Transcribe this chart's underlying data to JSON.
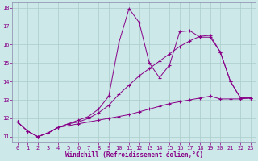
{
  "xlabel": "Windchill (Refroidissement éolien,°C)",
  "background_color": "#cce8e8",
  "grid_color": "#aacccc",
  "line_color": "#880088",
  "xlim": [
    -0.5,
    23.5
  ],
  "ylim": [
    10.7,
    18.3
  ],
  "yticks": [
    11,
    12,
    13,
    14,
    15,
    16,
    17,
    18
  ],
  "xticks": [
    0,
    1,
    2,
    3,
    4,
    5,
    6,
    7,
    8,
    9,
    10,
    11,
    12,
    13,
    14,
    15,
    16,
    17,
    18,
    19,
    20,
    21,
    22,
    23
  ],
  "series": [
    {
      "x": [
        0,
        1,
        2,
        3,
        4,
        5,
        6,
        7,
        8,
        9,
        10,
        11,
        12,
        13,
        14,
        15,
        16,
        17,
        18,
        19,
        20,
        21,
        22,
        23
      ],
      "y": [
        11.8,
        11.3,
        11.0,
        11.2,
        11.5,
        11.6,
        11.7,
        11.8,
        11.9,
        12.0,
        12.1,
        12.2,
        12.35,
        12.5,
        12.65,
        12.8,
        12.9,
        13.0,
        13.1,
        13.2,
        13.05,
        13.05,
        13.05,
        13.1
      ]
    },
    {
      "x": [
        0,
        1,
        2,
        3,
        4,
        5,
        6,
        7,
        8,
        9,
        10,
        11,
        12,
        13,
        14,
        15,
        16,
        17,
        18,
        19,
        20,
        21,
        22,
        23
      ],
      "y": [
        11.8,
        11.3,
        11.0,
        11.2,
        11.5,
        11.7,
        11.8,
        12.0,
        12.3,
        12.7,
        13.3,
        13.8,
        14.3,
        14.7,
        15.1,
        15.5,
        15.9,
        16.2,
        16.45,
        16.5,
        15.6,
        14.0,
        13.1,
        13.1
      ]
    },
    {
      "x": [
        0,
        1,
        2,
        3,
        4,
        5,
        6,
        7,
        8,
        9,
        10,
        11,
        12,
        13,
        14,
        15,
        16,
        17,
        18,
        19,
        20,
        21,
        22,
        23
      ],
      "y": [
        11.8,
        11.3,
        11.0,
        11.2,
        11.5,
        11.7,
        11.9,
        12.1,
        12.5,
        13.2,
        16.1,
        17.95,
        17.2,
        15.0,
        14.2,
        14.9,
        16.7,
        16.75,
        16.4,
        16.4,
        15.6,
        14.0,
        13.1,
        13.1
      ]
    }
  ]
}
